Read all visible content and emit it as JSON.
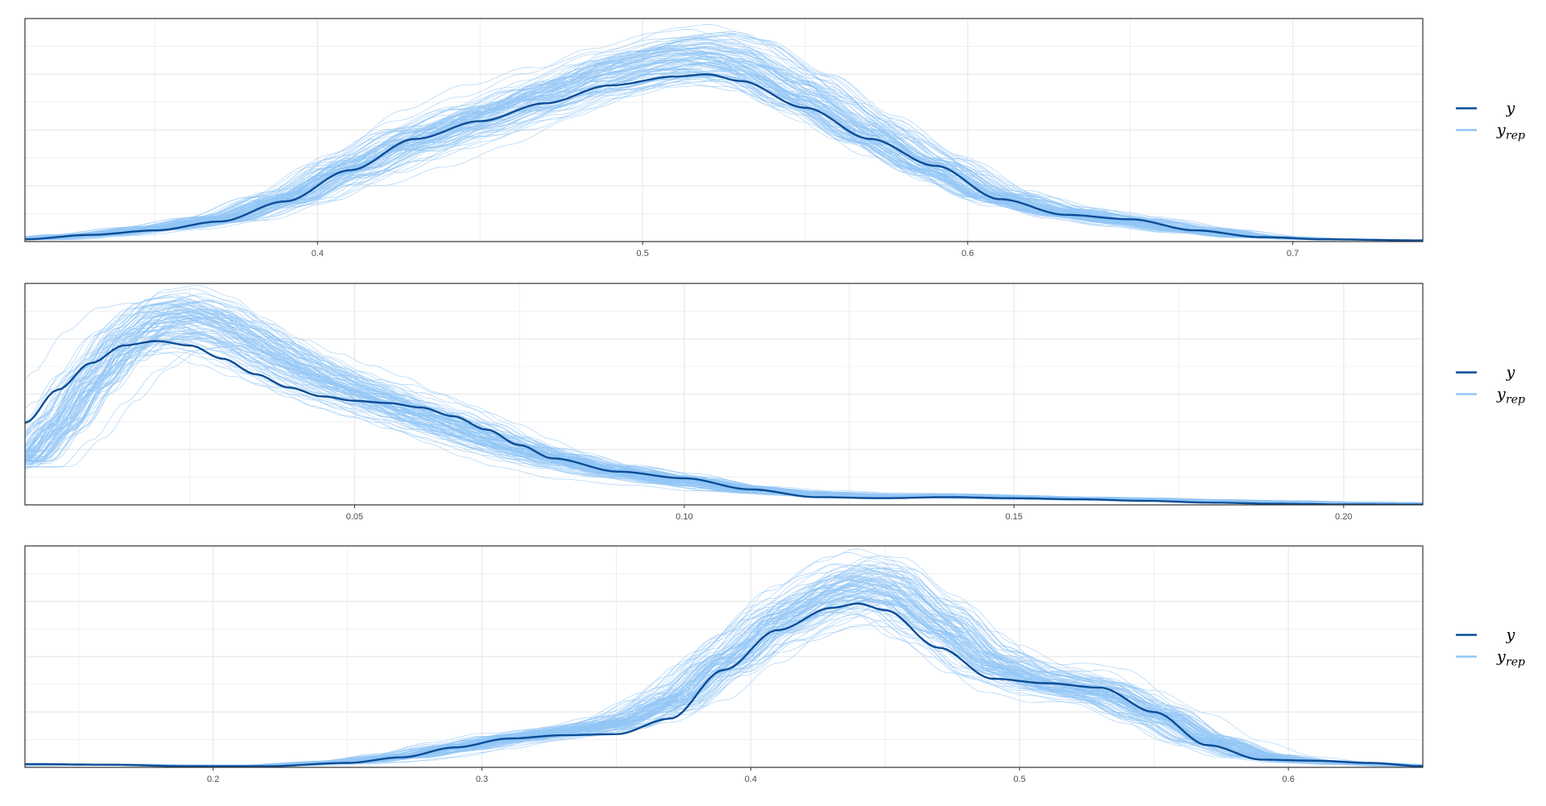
{
  "colors": {
    "y": "#0b4c96",
    "yrep": "#92c5f5",
    "grid": "#ebebeb",
    "panel_border": "#333333"
  },
  "legend": {
    "y_label": "y",
    "yrep_label": "y",
    "yrep_sub": "rep"
  },
  "chart_data": [
    {
      "type": "line",
      "title": "",
      "xlabel": "",
      "ylabel": "",
      "xlim": [
        0.31,
        0.74
      ],
      "x_ticks": [
        0.4,
        0.5,
        0.6,
        0.7
      ],
      "x_tick_labels": [
        "0.4",
        "0.5",
        "0.6",
        "0.7"
      ],
      "y_ticks_hidden": true,
      "grid": true,
      "legend_position": "right",
      "n_yrep_draws": 100,
      "y_density_peak_relative": 0.75,
      "series": [
        {
          "name": "y",
          "x": [
            0.31,
            0.33,
            0.35,
            0.37,
            0.39,
            0.41,
            0.43,
            0.45,
            0.47,
            0.49,
            0.51,
            0.52,
            0.53,
            0.55,
            0.57,
            0.59,
            0.61,
            0.63,
            0.65,
            0.67,
            0.69,
            0.71,
            0.74
          ],
          "y": [
            0.01,
            0.03,
            0.05,
            0.09,
            0.18,
            0.32,
            0.46,
            0.54,
            0.62,
            0.7,
            0.74,
            0.75,
            0.72,
            0.6,
            0.46,
            0.34,
            0.19,
            0.12,
            0.1,
            0.05,
            0.02,
            0.01,
            0.005
          ]
        },
        {
          "name": "y",
          "x": [
            0.31,
            0.33,
            0.35,
            0.37,
            0.39,
            0.41,
            0.43,
            0.45,
            0.47,
            0.49,
            0.51,
            0.52,
            0.53,
            0.55,
            0.57,
            0.59,
            0.61,
            0.63,
            0.65,
            0.67,
            0.69,
            0.71,
            0.74
          ],
          "y": [
            0.01,
            0.03,
            0.06,
            0.1,
            0.19,
            0.33,
            0.46,
            0.56,
            0.66,
            0.76,
            0.82,
            0.83,
            0.8,
            0.66,
            0.49,
            0.34,
            0.2,
            0.13,
            0.09,
            0.05,
            0.02,
            0.01,
            0.005
          ]
        }
      ]
    },
    {
      "type": "line",
      "title": "",
      "xlabel": "",
      "ylabel": "",
      "xlim": [
        0.0,
        0.212
      ],
      "x_ticks": [
        0.05,
        0.1,
        0.15,
        0.2
      ],
      "x_tick_labels": [
        "0.05",
        "0.10",
        "0.15",
        "0.20"
      ],
      "y_ticks_hidden": true,
      "grid": true,
      "legend_position": "right",
      "n_yrep_draws": 100,
      "series": [
        {
          "name": "y",
          "x": [
            0.0,
            0.005,
            0.01,
            0.015,
            0.02,
            0.025,
            0.03,
            0.035,
            0.04,
            0.045,
            0.05,
            0.055,
            0.06,
            0.065,
            0.07,
            0.075,
            0.08,
            0.09,
            0.1,
            0.11,
            0.12,
            0.13,
            0.14,
            0.15,
            0.16,
            0.17,
            0.18,
            0.19,
            0.2,
            0.212
          ],
          "y": [
            0.37,
            0.52,
            0.64,
            0.72,
            0.74,
            0.72,
            0.66,
            0.59,
            0.53,
            0.49,
            0.47,
            0.46,
            0.44,
            0.4,
            0.34,
            0.27,
            0.21,
            0.15,
            0.12,
            0.07,
            0.035,
            0.03,
            0.035,
            0.03,
            0.025,
            0.018,
            0.01,
            0.005,
            0.002,
            0.001
          ]
        },
        {
          "name": "y",
          "x": [
            0.0,
            0.005,
            0.01,
            0.015,
            0.02,
            0.025,
            0.03,
            0.035,
            0.04,
            0.045,
            0.05,
            0.055,
            0.06,
            0.065,
            0.07,
            0.075,
            0.08,
            0.09,
            0.1,
            0.11,
            0.12,
            0.13,
            0.14,
            0.15,
            0.16,
            0.17,
            0.18,
            0.19,
            0.2,
            0.212
          ],
          "y": [
            0.2,
            0.35,
            0.55,
            0.72,
            0.82,
            0.84,
            0.8,
            0.72,
            0.64,
            0.57,
            0.51,
            0.46,
            0.4,
            0.35,
            0.3,
            0.25,
            0.21,
            0.15,
            0.11,
            0.07,
            0.05,
            0.04,
            0.04,
            0.035,
            0.03,
            0.025,
            0.02,
            0.015,
            0.01,
            0.008
          ]
        }
      ]
    },
    {
      "type": "line",
      "title": "",
      "xlabel": "",
      "ylabel": "",
      "xlim": [
        0.13,
        0.65
      ],
      "x_ticks": [
        0.2,
        0.3,
        0.4,
        0.5,
        0.6
      ],
      "x_tick_labels": [
        "0.2",
        "0.3",
        "0.4",
        "0.5",
        "0.6"
      ],
      "y_ticks_hidden": true,
      "grid": true,
      "legend_position": "right",
      "n_yrep_draws": 100,
      "series": [
        {
          "name": "y",
          "x": [
            0.13,
            0.16,
            0.19,
            0.22,
            0.25,
            0.27,
            0.29,
            0.31,
            0.33,
            0.35,
            0.37,
            0.39,
            0.41,
            0.43,
            0.44,
            0.45,
            0.47,
            0.49,
            0.51,
            0.53,
            0.55,
            0.57,
            0.59,
            0.61,
            0.63,
            0.65
          ],
          "y": [
            0.015,
            0.012,
            0.005,
            0.005,
            0.02,
            0.045,
            0.09,
            0.13,
            0.145,
            0.15,
            0.22,
            0.44,
            0.62,
            0.72,
            0.74,
            0.71,
            0.54,
            0.4,
            0.38,
            0.36,
            0.25,
            0.1,
            0.035,
            0.03,
            0.02,
            0.005
          ]
        },
        {
          "name": "y",
          "x": [
            0.13,
            0.16,
            0.19,
            0.22,
            0.25,
            0.27,
            0.29,
            0.31,
            0.33,
            0.35,
            0.37,
            0.39,
            0.41,
            0.43,
            0.44,
            0.45,
            0.47,
            0.49,
            0.51,
            0.53,
            0.55,
            0.57,
            0.59,
            0.61,
            0.63,
            0.65
          ],
          "y": [
            0.01,
            0.012,
            0.008,
            0.008,
            0.025,
            0.05,
            0.09,
            0.13,
            0.16,
            0.2,
            0.3,
            0.48,
            0.66,
            0.78,
            0.82,
            0.8,
            0.64,
            0.46,
            0.38,
            0.34,
            0.24,
            0.12,
            0.05,
            0.025,
            0.015,
            0.005
          ]
        }
      ]
    }
  ]
}
